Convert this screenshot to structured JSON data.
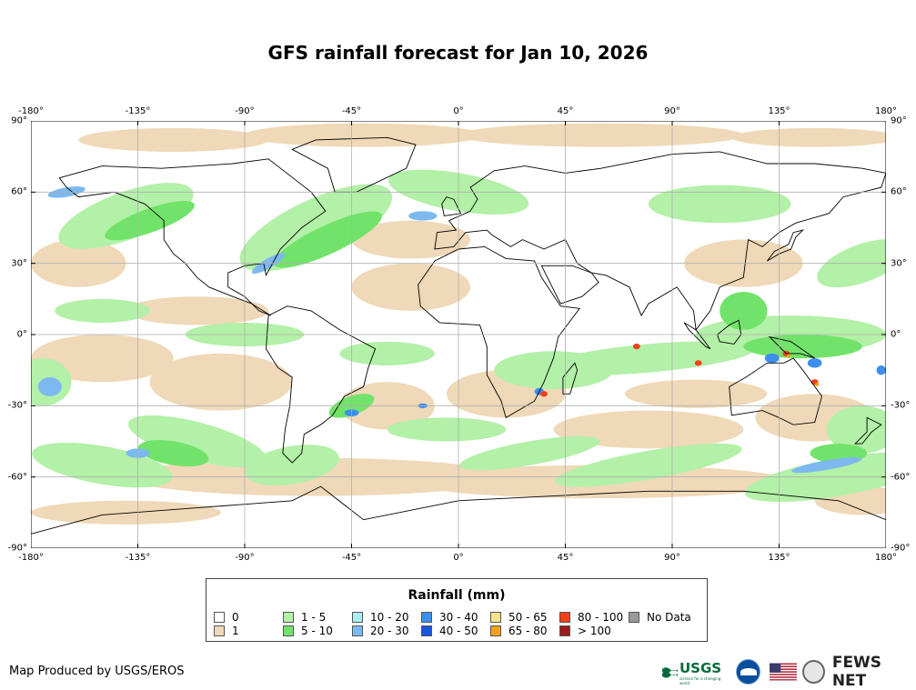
{
  "map": {
    "title": "GFS rainfall forecast for Jan 10, 2026",
    "lon_labels": [
      "-180°",
      "-135°",
      "-90°",
      "-45°",
      "0°",
      "45°",
      "90°",
      "135°",
      "180°"
    ],
    "lat_labels": [
      "90°",
      "60°",
      "30°",
      "0°",
      "-30°",
      "-60°",
      "-90°"
    ],
    "colors": {
      "ocean": "#ffffff",
      "grid": "#b0b0b0",
      "border": "#000000"
    }
  },
  "legend": {
    "title": "Rainfall (mm)",
    "items": [
      {
        "label": "0",
        "color": "#ffffff"
      },
      {
        "label": "1",
        "color": "#efd9b8"
      },
      {
        "label": "1 - 5",
        "color": "#b3f0a8"
      },
      {
        "label": "5 - 10",
        "color": "#72e36a"
      },
      {
        "label": "10 - 20",
        "color": "#a8eef0"
      },
      {
        "label": "20 - 30",
        "color": "#7db9f0"
      },
      {
        "label": "30 - 40",
        "color": "#3c8ef0"
      },
      {
        "label": "40 - 50",
        "color": "#1556e0"
      },
      {
        "label": "50 - 65",
        "color": "#f7e38a"
      },
      {
        "label": "65 - 80",
        "color": "#f3a11b"
      },
      {
        "label": "80 - 100",
        "color": "#f0401b"
      },
      {
        "label": "> 100",
        "color": "#9b1c1c"
      },
      {
        "label": "No Data",
        "color": "#9a9a9a"
      }
    ]
  },
  "footer": {
    "credit": "Map Produced by USGS/EROS",
    "usgs_logo": "USGS",
    "usgs_tagline": "science for a changing world",
    "fews_logo": "FEWS NET"
  }
}
